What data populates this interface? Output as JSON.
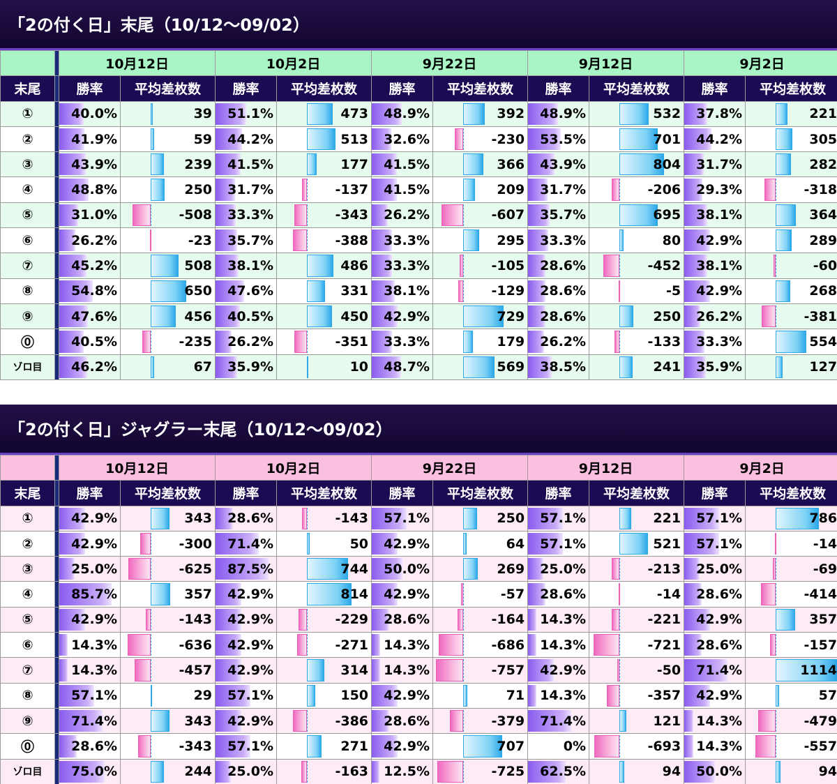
{
  "sections": [
    {
      "title": "「2の付く日」末尾（10/12〜09/02）",
      "tail_header": "末尾",
      "rate_header": "勝率",
      "diff_header": "平均差枚数",
      "dates": [
        "10月12日",
        "10月2日",
        "9月22日",
        "9月12日",
        "9月2日"
      ],
      "rows": [
        {
          "tail": "①",
          "cells": [
            [
              "40.0%",
              39
            ],
            [
              "51.1%",
              473
            ],
            [
              "48.9%",
              392
            ],
            [
              "48.9%",
              532
            ],
            [
              "37.8%",
              221
            ]
          ]
        },
        {
          "tail": "②",
          "cells": [
            [
              "41.9%",
              59
            ],
            [
              "44.2%",
              513
            ],
            [
              "32.6%",
              -230
            ],
            [
              "53.5%",
              701
            ],
            [
              "44.2%",
              305
            ]
          ]
        },
        {
          "tail": "③",
          "cells": [
            [
              "43.9%",
              239
            ],
            [
              "41.5%",
              177
            ],
            [
              "41.5%",
              366
            ],
            [
              "43.9%",
              804
            ],
            [
              "31.7%",
              282
            ]
          ]
        },
        {
          "tail": "④",
          "cells": [
            [
              "48.8%",
              250
            ],
            [
              "31.7%",
              -137
            ],
            [
              "41.5%",
              209
            ],
            [
              "31.7%",
              -206
            ],
            [
              "29.3%",
              -318
            ]
          ]
        },
        {
          "tail": "⑤",
          "cells": [
            [
              "31.0%",
              -508
            ],
            [
              "33.3%",
              -343
            ],
            [
              "26.2%",
              -607
            ],
            [
              "35.7%",
              695
            ],
            [
              "38.1%",
              364
            ]
          ]
        },
        {
          "tail": "⑥",
          "cells": [
            [
              "26.2%",
              -23
            ],
            [
              "35.7%",
              -388
            ],
            [
              "33.3%",
              295
            ],
            [
              "33.3%",
              80
            ],
            [
              "42.9%",
              289
            ]
          ]
        },
        {
          "tail": "⑦",
          "cells": [
            [
              "45.2%",
              508
            ],
            [
              "38.1%",
              486
            ],
            [
              "33.3%",
              -105
            ],
            [
              "28.6%",
              -452
            ],
            [
              "38.1%",
              -60
            ]
          ]
        },
        {
          "tail": "⑧",
          "cells": [
            [
              "54.8%",
              650
            ],
            [
              "47.6%",
              331
            ],
            [
              "38.1%",
              -129
            ],
            [
              "28.6%",
              -5
            ],
            [
              "42.9%",
              268
            ]
          ]
        },
        {
          "tail": "⑨",
          "cells": [
            [
              "47.6%",
              456
            ],
            [
              "40.5%",
              450
            ],
            [
              "42.9%",
              729
            ],
            [
              "28.6%",
              250
            ],
            [
              "26.2%",
              -381
            ]
          ]
        },
        {
          "tail": "⓪",
          "cells": [
            [
              "40.5%",
              -235
            ],
            [
              "26.2%",
              -351
            ],
            [
              "33.3%",
              179
            ],
            [
              "26.2%",
              -133
            ],
            [
              "33.3%",
              554
            ]
          ]
        },
        {
          "tail": "ゾロ目",
          "cells": [
            [
              "46.2%",
              67
            ],
            [
              "35.9%",
              10
            ],
            [
              "48.7%",
              569
            ],
            [
              "38.5%",
              241
            ],
            [
              "35.9%",
              127
            ]
          ]
        }
      ]
    },
    {
      "title": "「2の付く日」ジャグラー末尾（10/12〜09/02）",
      "tail_header": "末尾",
      "rate_header": "勝率",
      "diff_header": "平均差枚数",
      "dates": [
        "10月12日",
        "10月2日",
        "9月22日",
        "9月12日",
        "9月2日"
      ],
      "rows": [
        {
          "tail": "①",
          "cells": [
            [
              "42.9%",
              343
            ],
            [
              "28.6%",
              -143
            ],
            [
              "57.1%",
              250
            ],
            [
              "57.1%",
              221
            ],
            [
              "57.1%",
              786
            ]
          ]
        },
        {
          "tail": "②",
          "cells": [
            [
              "42.9%",
              -300
            ],
            [
              "71.4%",
              50
            ],
            [
              "42.9%",
              64
            ],
            [
              "57.1%",
              521
            ],
            [
              "57.1%",
              -14
            ]
          ]
        },
        {
          "tail": "③",
          "cells": [
            [
              "25.0%",
              -625
            ],
            [
              "87.5%",
              744
            ],
            [
              "50.0%",
              269
            ],
            [
              "25.0%",
              -213
            ],
            [
              "25.0%",
              -69
            ]
          ]
        },
        {
          "tail": "④",
          "cells": [
            [
              "85.7%",
              357
            ],
            [
              "42.9%",
              814
            ],
            [
              "42.9%",
              -57
            ],
            [
              "28.6%",
              -14
            ],
            [
              "28.6%",
              -414
            ]
          ]
        },
        {
          "tail": "⑤",
          "cells": [
            [
              "42.9%",
              -143
            ],
            [
              "42.9%",
              -229
            ],
            [
              "28.6%",
              -164
            ],
            [
              "14.3%",
              -221
            ],
            [
              "42.9%",
              357
            ]
          ]
        },
        {
          "tail": "⑥",
          "cells": [
            [
              "14.3%",
              -636
            ],
            [
              "42.9%",
              -271
            ],
            [
              "14.3%",
              -686
            ],
            [
              "14.3%",
              -721
            ],
            [
              "28.6%",
              -157
            ]
          ]
        },
        {
          "tail": "⑦",
          "cells": [
            [
              "14.3%",
              -457
            ],
            [
              "42.9%",
              314
            ],
            [
              "14.3%",
              -757
            ],
            [
              "42.9%",
              -50
            ],
            [
              "71.4%",
              1114
            ]
          ]
        },
        {
          "tail": "⑧",
          "cells": [
            [
              "57.1%",
              29
            ],
            [
              "57.1%",
              150
            ],
            [
              "42.9%",
              71
            ],
            [
              "14.3%",
              -357
            ],
            [
              "42.9%",
              57
            ]
          ]
        },
        {
          "tail": "⑨",
          "cells": [
            [
              "71.4%",
              343
            ],
            [
              "42.9%",
              -386
            ],
            [
              "28.6%",
              -379
            ],
            [
              "71.4%",
              121
            ],
            [
              "14.3%",
              -479
            ]
          ]
        },
        {
          "tail": "⓪",
          "cells": [
            [
              "28.6%",
              -343
            ],
            [
              "57.1%",
              271
            ],
            [
              "42.9%",
              707
            ],
            [
              "0%",
              -693
            ],
            [
              "14.3%",
              -557
            ]
          ]
        },
        {
          "tail": "ゾロ目",
          "cells": [
            [
              "75.0%",
              244
            ],
            [
              "25.0%",
              -163
            ],
            [
              "12.5%",
              -725
            ],
            [
              "62.5%",
              94
            ],
            [
              "50.0%",
              94
            ]
          ]
        }
      ]
    }
  ],
  "colors": {
    "title_bg": "#1a0a3e",
    "header_bg": "#1c0a52",
    "date_head_1": "#a9f5c6",
    "date_head_2": "#fbbfe0",
    "rate_bar": "#8a5cf0",
    "pos_bar": "#2ea8e8",
    "neg_bar": "#f06ac0"
  }
}
